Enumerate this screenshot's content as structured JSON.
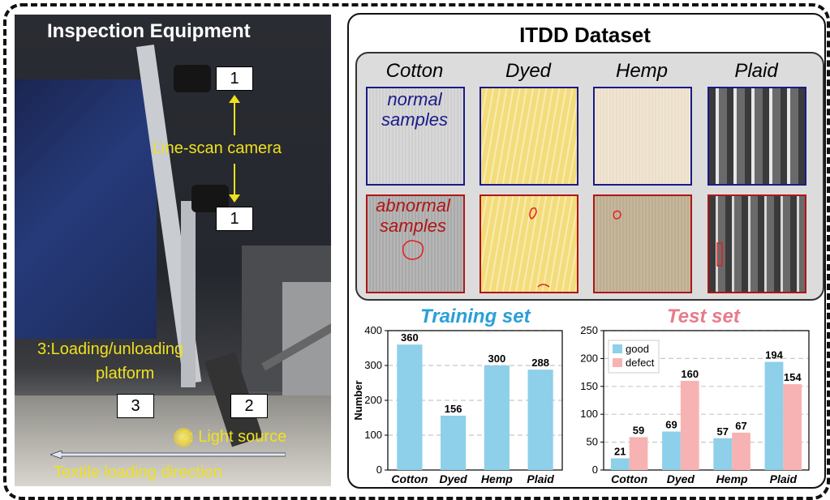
{
  "left_panel": {
    "title": "Inspection Equipment",
    "camera_label": "Line-scan camera",
    "camera_num_top": "1",
    "camera_num_bottom": "1",
    "platform_label_line1": "3:Loading/unloading",
    "platform_label_line2": "platform",
    "platform_num": "3",
    "light_num": "2",
    "light_label": "2: Light source",
    "direction_label": "Textile loading direction"
  },
  "dataset_panel": {
    "title": "ITDD Dataset",
    "categories": [
      "Cotton",
      "Dyed",
      "Hemp",
      "Plaid"
    ],
    "normal_label": "normal samples",
    "abnormal_label": "abnormal samples",
    "colors": {
      "normal_border": "#1a1a8a",
      "abnormal_border": "#b01515",
      "bar_blue": "#8ecfea",
      "bar_pink": "#f7b3b3"
    }
  },
  "chart_data": [
    {
      "type": "bar",
      "title": "Training set",
      "categories": [
        "Cotton",
        "Dyed",
        "Hemp",
        "Plaid"
      ],
      "values": [
        360,
        156,
        300,
        288
      ],
      "xlabel": "",
      "ylabel": "Number",
      "ylim": [
        0,
        400
      ],
      "yticks": [
        0,
        100,
        200,
        300,
        400
      ],
      "grid": true
    },
    {
      "type": "bar",
      "title": "Test set",
      "categories": [
        "Cotton",
        "Dyed",
        "Hemp",
        "Plaid"
      ],
      "series": [
        {
          "name": "good",
          "values": [
            21,
            69,
            57,
            194
          ]
        },
        {
          "name": "defect",
          "values": [
            59,
            160,
            67,
            154
          ]
        }
      ],
      "xlabel": "",
      "ylabel": "",
      "ylim": [
        0,
        250
      ],
      "yticks": [
        0,
        50,
        100,
        150,
        200,
        250
      ],
      "grid": true,
      "legend": "top-left"
    }
  ]
}
